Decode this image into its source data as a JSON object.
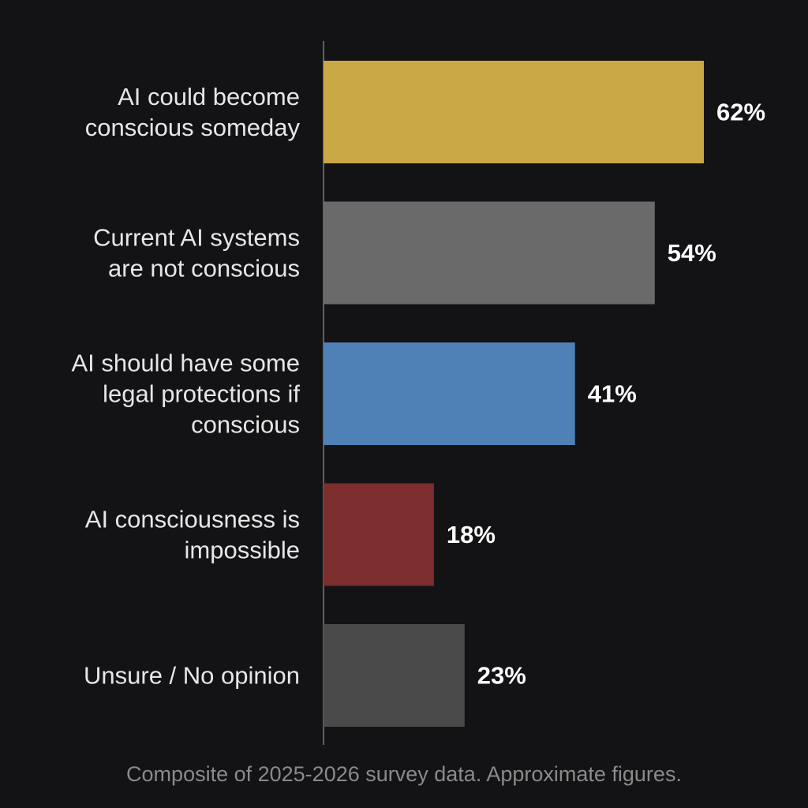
{
  "chart_data": {
    "type": "bar",
    "orientation": "horizontal",
    "categories": [
      [
        "AI could become",
        "conscious someday"
      ],
      [
        "Current AI systems",
        "are not conscious"
      ],
      [
        "AI should have some",
        "legal protections if",
        "conscious"
      ],
      [
        "AI consciousness is",
        "impossible"
      ],
      [
        "Unsure / No opinion"
      ]
    ],
    "values": [
      62,
      54,
      41,
      18,
      23
    ],
    "value_labels": [
      "62%",
      "54%",
      "41%",
      "18%",
      "23%"
    ],
    "colors": [
      "#c9a845",
      "#6a6a6a",
      "#4f81b6",
      "#7c2d2d",
      "#4a4a4a"
    ],
    "xlim": [
      0,
      100
    ],
    "grid": false,
    "legend": "none"
  },
  "footnote": "Composite of 2025-2026 survey data. Approximate figures.",
  "colors": {
    "background": "#131316",
    "text": "#e6e6e6",
    "value_text": "#ffffff",
    "axis": "#7a7a7a",
    "footnote": "#8a8a8a"
  }
}
